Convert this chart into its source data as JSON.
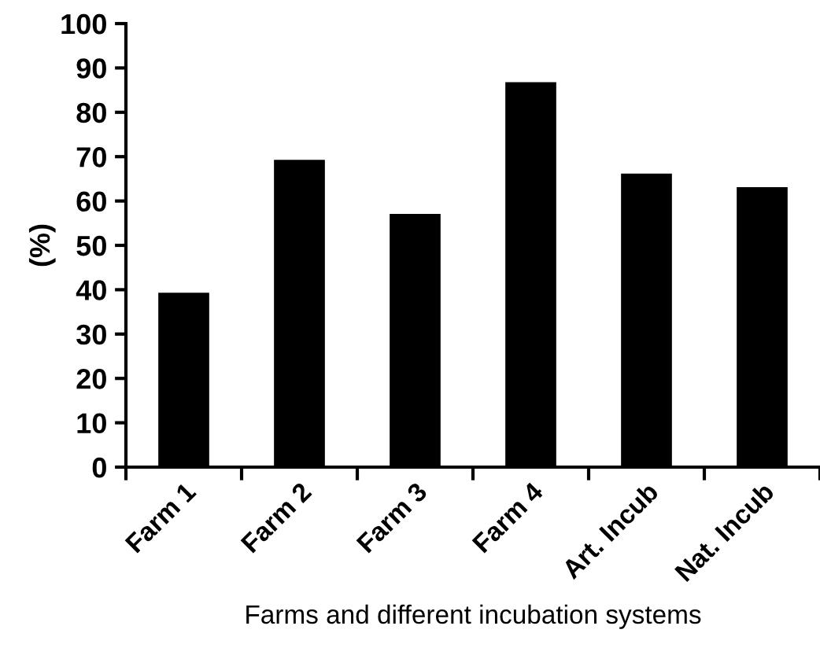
{
  "chart_data": {
    "type": "bar",
    "xlabel": "Farms and different incubation systems",
    "ylabel": "(%)",
    "categories": [
      "Farm 1",
      "Farm 2",
      "Farm 3",
      "Farm 4",
      "Art. Incub",
      "Nat. Incub"
    ],
    "values": [
      39.3,
      69.3,
      57.1,
      86.8,
      66.2,
      63.1
    ],
    "color": "#000000",
    "ylim": [
      0,
      100
    ],
    "yticks": [
      0,
      10,
      20,
      30,
      40,
      50,
      60,
      70,
      80,
      90,
      100
    ],
    "grid": false,
    "legend": false
  }
}
